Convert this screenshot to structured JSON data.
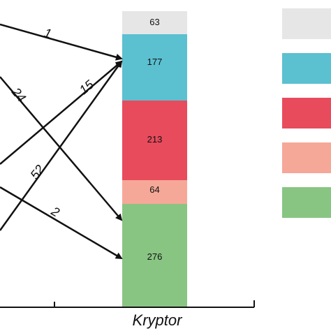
{
  "bar": {
    "segments": [
      {
        "label": "63",
        "color": "#e6e6e6"
      },
      {
        "label": "177",
        "color": "#5bc0d0"
      },
      {
        "label": "213",
        "color": "#e84b5c"
      },
      {
        "label": "64",
        "color": "#f5a898"
      },
      {
        "label": "276",
        "color": "#88c583"
      }
    ]
  },
  "flows": [
    {
      "label": "1"
    },
    {
      "label": "15"
    },
    {
      "label": "24"
    },
    {
      "label": "52"
    },
    {
      "label": "2"
    }
  ],
  "legend": {
    "swatches": [
      "#e6e6e6",
      "#5bc0d0",
      "#e84b5c",
      "#f5a898",
      "#88c583"
    ]
  },
  "axis": {
    "label": "Kryptor"
  },
  "colors": {
    "line": "#111111"
  }
}
